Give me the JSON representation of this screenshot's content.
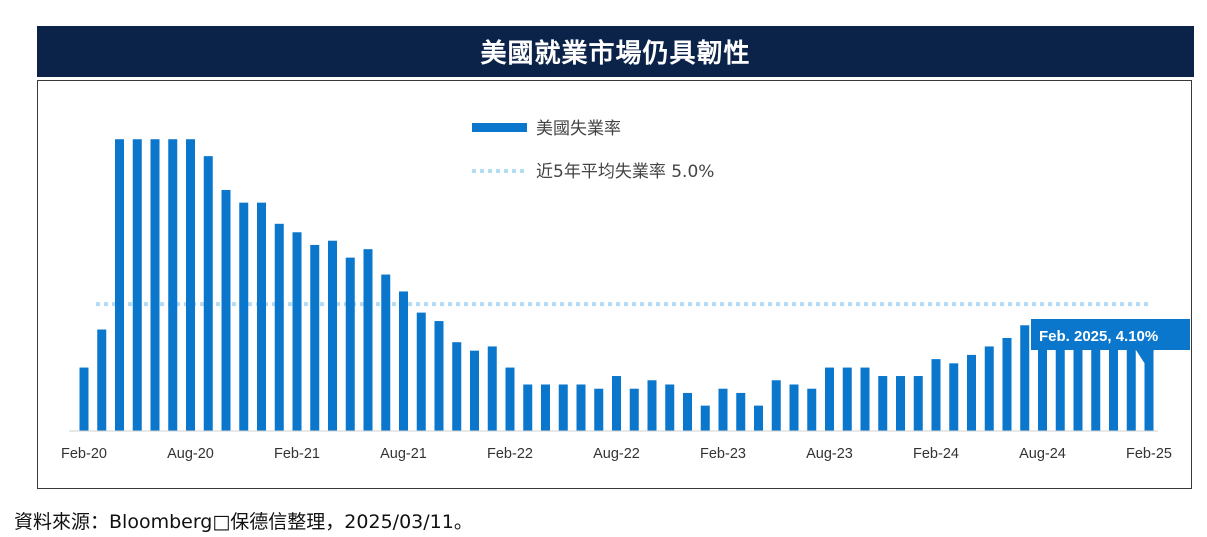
{
  "title": "美國就業市場仍具韌性",
  "source": "資料來源：Bloomberg□保德信整理，2025/03/11。",
  "colors": {
    "title_bg": "#0b2249",
    "bar": "#0a77cc",
    "avg_line": "#b4dcf4",
    "callout_bg": "#0a77cc"
  },
  "chart_data": {
    "type": "bar",
    "legend": {
      "bar_label": "美國失業率",
      "line_label": "近5年平均失業率 5.0%",
      "placement": "top-center"
    },
    "x_tick_labels": [
      "Feb-20",
      "Aug-20",
      "Feb-21",
      "Aug-21",
      "Feb-22",
      "Aug-22",
      "Feb-23",
      "Aug-23",
      "Feb-24",
      "Aug-24",
      "Feb-25"
    ],
    "categories": [
      "2020-02",
      "2020-03",
      "2020-04",
      "2020-05",
      "2020-06",
      "2020-07",
      "2020-08",
      "2020-09",
      "2020-10",
      "2020-11",
      "2020-12",
      "2021-01",
      "2021-02",
      "2021-03",
      "2021-04",
      "2021-05",
      "2021-06",
      "2021-07",
      "2021-08",
      "2021-09",
      "2021-10",
      "2021-11",
      "2021-12",
      "2022-01",
      "2022-02",
      "2022-03",
      "2022-04",
      "2022-05",
      "2022-06",
      "2022-07",
      "2022-08",
      "2022-09",
      "2022-10",
      "2022-11",
      "2022-12",
      "2023-01",
      "2023-02",
      "2023-03",
      "2023-04",
      "2023-05",
      "2023-06",
      "2023-07",
      "2023-08",
      "2023-09",
      "2023-10",
      "2023-11",
      "2023-12",
      "2024-01",
      "2024-02",
      "2024-03",
      "2024-04",
      "2024-05",
      "2024-06",
      "2024-07",
      "2024-08",
      "2024-09",
      "2024-10",
      "2024-11",
      "2024-12",
      "2025-01",
      "2025-02"
    ],
    "values": [
      3.5,
      4.4,
      8.9,
      8.9,
      8.9,
      8.9,
      8.9,
      8.5,
      7.7,
      7.4,
      7.4,
      6.9,
      6.7,
      6.4,
      6.5,
      6.1,
      6.3,
      5.7,
      5.3,
      4.8,
      4.6,
      4.1,
      3.9,
      4.0,
      3.5,
      3.1,
      3.1,
      3.1,
      3.1,
      3.0,
      3.3,
      3.0,
      3.2,
      3.1,
      2.9,
      2.6,
      3.0,
      2.9,
      2.6,
      3.2,
      3.1,
      3.0,
      3.5,
      3.5,
      3.5,
      3.3,
      3.3,
      3.3,
      3.7,
      3.6,
      3.8,
      4.0,
      4.2,
      4.5,
      4.3,
      4.1,
      4.1,
      4.2,
      4.1,
      4.0,
      4.1
    ],
    "avg_line_value": 5.0,
    "ylim": [
      2.0,
      9.0
    ],
    "grid": false,
    "annotation": {
      "text": "Feb. 2025, 4.10%",
      "index": 60
    }
  }
}
